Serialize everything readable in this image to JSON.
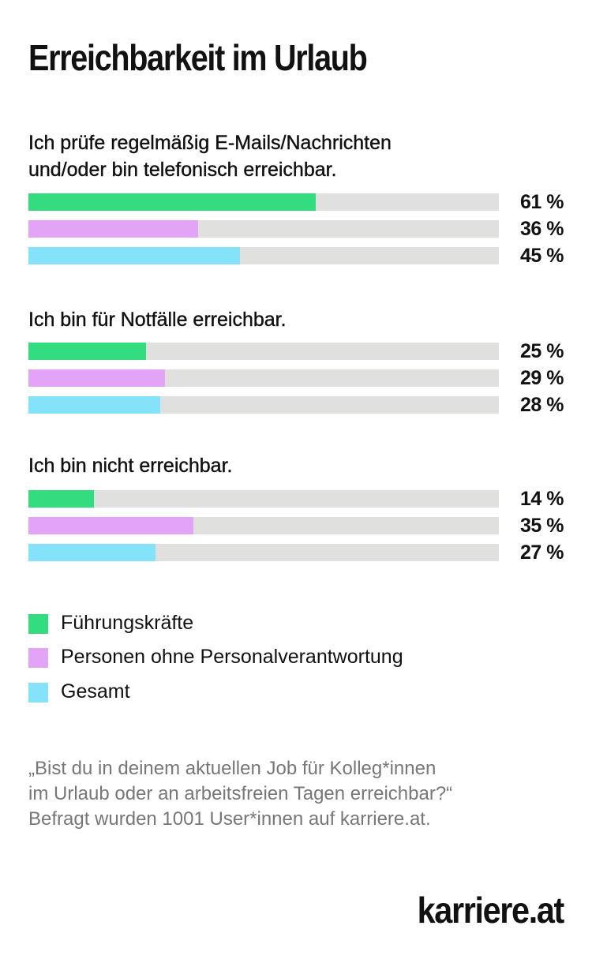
{
  "title": "Erreichbarkeit im Urlaub",
  "chart_data": {
    "type": "bar",
    "orientation": "horizontal",
    "xlim": [
      0,
      100
    ],
    "unit": "%",
    "categories": [
      "Ich prüfe regelmäßig E-Mails/Nachrichten und/oder bin telefonisch erreichbar.",
      "Ich bin für Notfälle erreichbar.",
      "Ich bin nicht erreichbar."
    ],
    "category_lines": [
      [
        "Ich prüfe regelmäßig E-Mails/Nachrichten",
        "und/oder bin telefonisch erreichbar."
      ],
      [
        "Ich bin für Notfälle erreichbar."
      ],
      [
        "Ich bin nicht erreichbar."
      ]
    ],
    "series": [
      {
        "name": "Führungskräfte",
        "color": "#33dd7f",
        "values": [
          61,
          25,
          14
        ],
        "labels": [
          "61 %",
          "25 %",
          "14 %"
        ]
      },
      {
        "name": "Personen ohne Personalverantwortung",
        "color": "#e3a3f6",
        "values": [
          36,
          29,
          35
        ],
        "labels": [
          "36 %",
          "29 %",
          "35 %"
        ]
      },
      {
        "name": "Gesamt",
        "color": "#84e2fa",
        "values": [
          45,
          28,
          27
        ],
        "labels": [
          "45 %",
          "28 %",
          "27 %"
        ]
      }
    ],
    "track_color": "#e0e0de",
    "legend": "bottom-left"
  },
  "note": [
    "„Bist du in deinem aktuellen Job für Kolleg*innen",
    "im Urlaub oder an arbeitsfreien Tagen erreichbar?“",
    "Befragt wurden 1001 User*innen auf karriere.at."
  ],
  "brand": "karriere.at"
}
